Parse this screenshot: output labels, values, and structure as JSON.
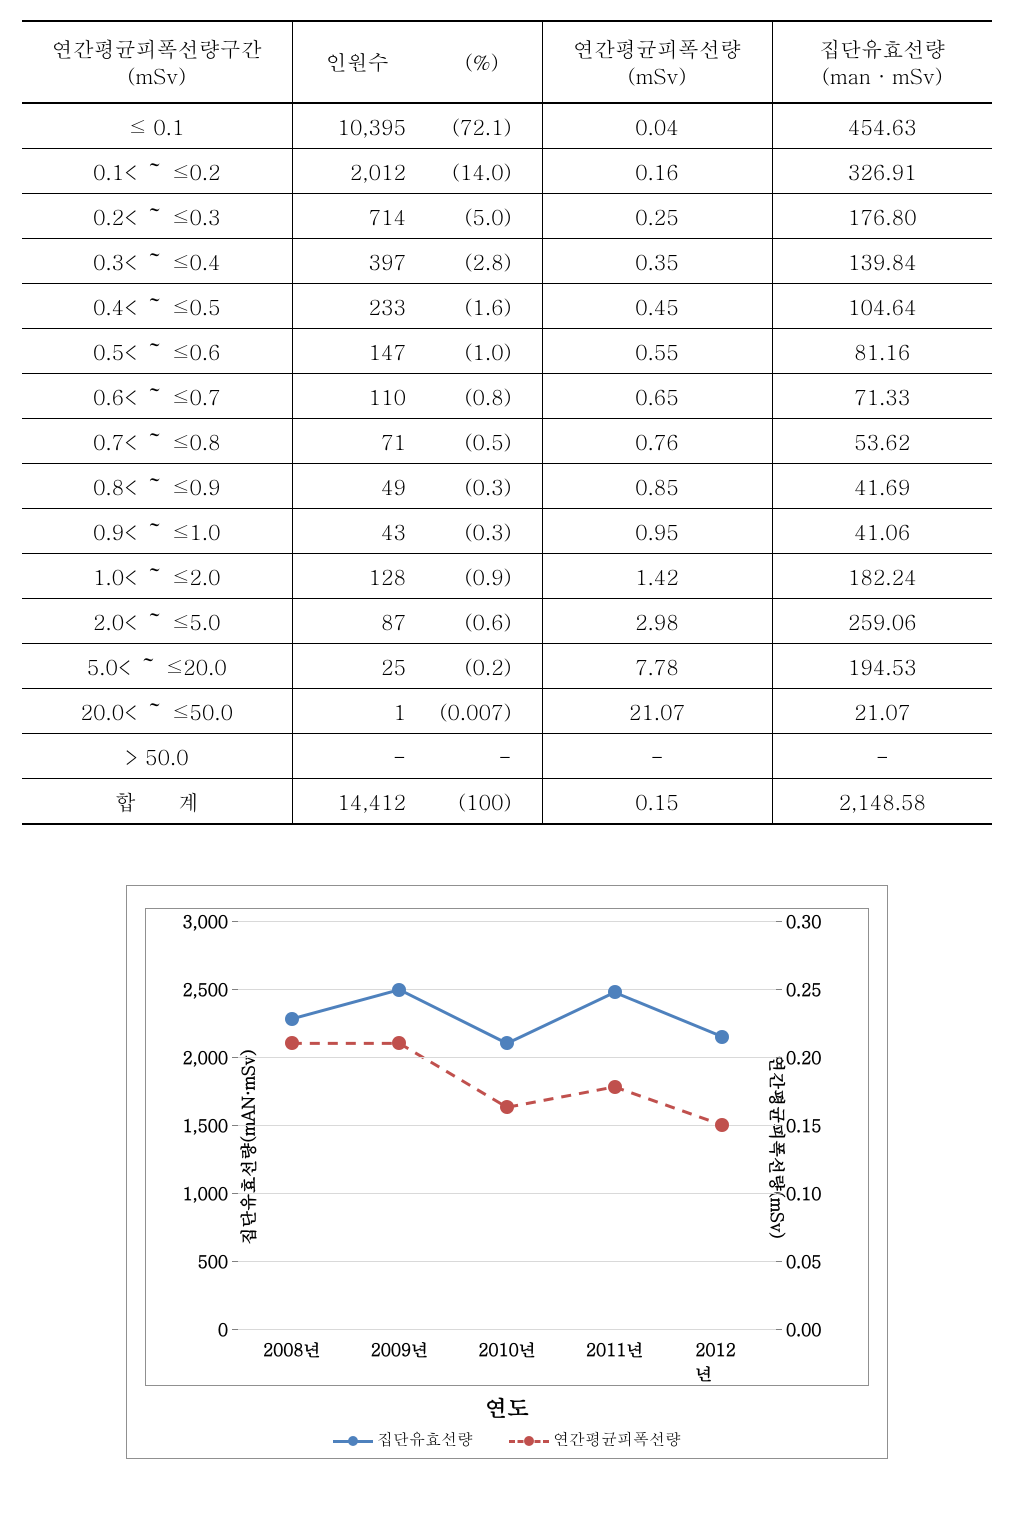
{
  "table": {
    "headers": {
      "range": "연간평균피폭선량구간",
      "range_unit": "(mSv)",
      "count": "인원수",
      "pct": "(%)",
      "avg": "연간평균피폭선량",
      "avg_unit": "(mSv)",
      "effective": "집단유효선량",
      "effective_unit": "(man · mSv)"
    },
    "rows": [
      {
        "range": "≤ 0.1",
        "count": "10,395",
        "pct": "(72.1)",
        "avg": "0.04",
        "eff": "454.63"
      },
      {
        "range": "0.1< ～ ≤0.2",
        "count": "2,012",
        "pct": "(14.0)",
        "avg": "0.16",
        "eff": "326.91"
      },
      {
        "range": "0.2< ～ ≤0.3",
        "count": "714",
        "pct": "(5.0)",
        "avg": "0.25",
        "eff": "176.80"
      },
      {
        "range": "0.3< ～ ≤0.4",
        "count": "397",
        "pct": "(2.8)",
        "avg": "0.35",
        "eff": "139.84"
      },
      {
        "range": "0.4< ～ ≤0.5",
        "count": "233",
        "pct": "(1.6)",
        "avg": "0.45",
        "eff": "104.64"
      },
      {
        "range": "0.5< ～ ≤0.6",
        "count": "147",
        "pct": "(1.0)",
        "avg": "0.55",
        "eff": "81.16"
      },
      {
        "range": "0.6< ～ ≤0.7",
        "count": "110",
        "pct": "(0.8)",
        "avg": "0.65",
        "eff": "71.33"
      },
      {
        "range": "0.7< ～ ≤0.8",
        "count": "71",
        "pct": "(0.5)",
        "avg": "0.76",
        "eff": "53.62"
      },
      {
        "range": "0.8< ～ ≤0.9",
        "count": "49",
        "pct": "(0.3)",
        "avg": "0.85",
        "eff": "41.69"
      },
      {
        "range": "0.9< ～ ≤1.0",
        "count": "43",
        "pct": "(0.3)",
        "avg": "0.95",
        "eff": "41.06"
      },
      {
        "range": "1.0< ～ ≤2.0",
        "count": "128",
        "pct": "(0.9)",
        "avg": "1.42",
        "eff": "182.24"
      },
      {
        "range": "2.0< ～ ≤5.0",
        "count": "87",
        "pct": "(0.6)",
        "avg": "2.98",
        "eff": "259.06"
      },
      {
        "range": "5.0< ～ ≤20.0",
        "count": "25",
        "pct": "(0.2)",
        "avg": "7.78",
        "eff": "194.53"
      },
      {
        "range": "20.0< ～ ≤50.0",
        "count": "1",
        "pct": "(0.007)",
        "avg": "21.07",
        "eff": "21.07"
      },
      {
        "range": "> 50.0",
        "count": "-",
        "pct": "-",
        "avg": "-",
        "eff": "-"
      }
    ],
    "total": {
      "label": "합　　계",
      "count": "14,412",
      "pct": "(100)",
      "avg": "0.15",
      "eff": "2,148.58"
    }
  },
  "chart": {
    "type": "line",
    "x_categories": [
      "2008년",
      "2009년",
      "2010년",
      "2011년",
      "2012년"
    ],
    "x_axis_title": "연도",
    "y_left": {
      "title": "집단유효선량(mAN·mSv)",
      "min": 0,
      "max": 3000,
      "step": 500,
      "labels": [
        "0",
        "500",
        "1,000",
        "1,500",
        "2,000",
        "2,500",
        "3,000"
      ]
    },
    "y_right": {
      "title": "연간평균피폭선량(mSv)",
      "min": 0,
      "max": 0.3,
      "step": 0.05,
      "labels": [
        "0.00",
        "0.05",
        "0.10",
        "0.15",
        "0.20",
        "0.25",
        "0.30"
      ]
    },
    "series": [
      {
        "name": "집단유효선량",
        "axis": "left",
        "line_style": "solid",
        "color": "#4e81bd",
        "marker_color": "#4e81bd",
        "line_width": 3,
        "marker_size": 14,
        "values": [
          2280,
          2495,
          2100,
          2475,
          2150
        ]
      },
      {
        "name": "연간평균피폭선량",
        "axis": "right",
        "line_style": "dashed",
        "color": "#c0504d",
        "marker_color": "#c0504d",
        "line_width": 3,
        "marker_size": 14,
        "values": [
          0.21,
          0.21,
          0.163,
          0.178,
          0.15
        ]
      }
    ],
    "grid_color": "#d9d9d9",
    "border_color": "#888888",
    "background": "#ffffff",
    "label_fontsize": 17,
    "title_fontsize": 22
  }
}
